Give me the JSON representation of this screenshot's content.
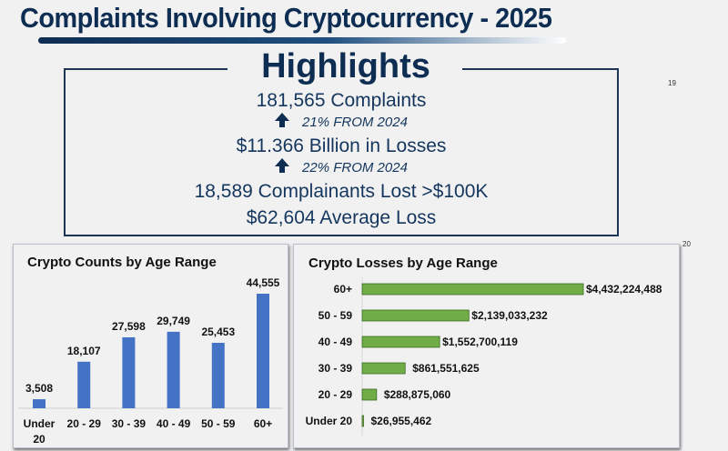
{
  "title": "Complaints Involving Cryptocurrency - 2025",
  "highlights": {
    "heading": "Highlights",
    "complaints": "181,565 Complaints",
    "complaints_change": "21% FROM 2024",
    "losses": "$11.366 Billion in Losses",
    "losses_change": "22% FROM 2024",
    "over_100k": "18,589 Complainants Lost >$100K",
    "average": "$62,604 Average Loss",
    "change_icon": "arrow-up-icon"
  },
  "page_numbers": [
    "19",
    "20"
  ],
  "chart_data": [
    {
      "type": "bar",
      "title": "Crypto Counts by Age Range",
      "orientation": "vertical",
      "color": "#4472c4",
      "categories": [
        "Under 20",
        "20 - 29",
        "30 - 39",
        "40 - 49",
        "50 - 59",
        "60+"
      ],
      "values": [
        3508,
        18107,
        27598,
        29749,
        25453,
        44555
      ],
      "labels": [
        "3,508",
        "18,107",
        "27,598",
        "29,749",
        "25,453",
        "44,555"
      ],
      "grid": false
    },
    {
      "type": "bar",
      "title": "Crypto Losses by Age Range",
      "orientation": "horizontal",
      "color": "#70ad47",
      "categories": [
        "60+",
        "50 - 59",
        "40 - 49",
        "30 - 39",
        "20 - 29",
        "Under 20"
      ],
      "values": [
        4432224488,
        2139033232,
        1552700119,
        861551625,
        288875060,
        26955462
      ],
      "labels": [
        "$4,432,224,488",
        "$2,139,033,232",
        "$1,552,700,119",
        "$861,551,625",
        "$288,875,060",
        "$26,955,462"
      ],
      "grid": false
    }
  ]
}
